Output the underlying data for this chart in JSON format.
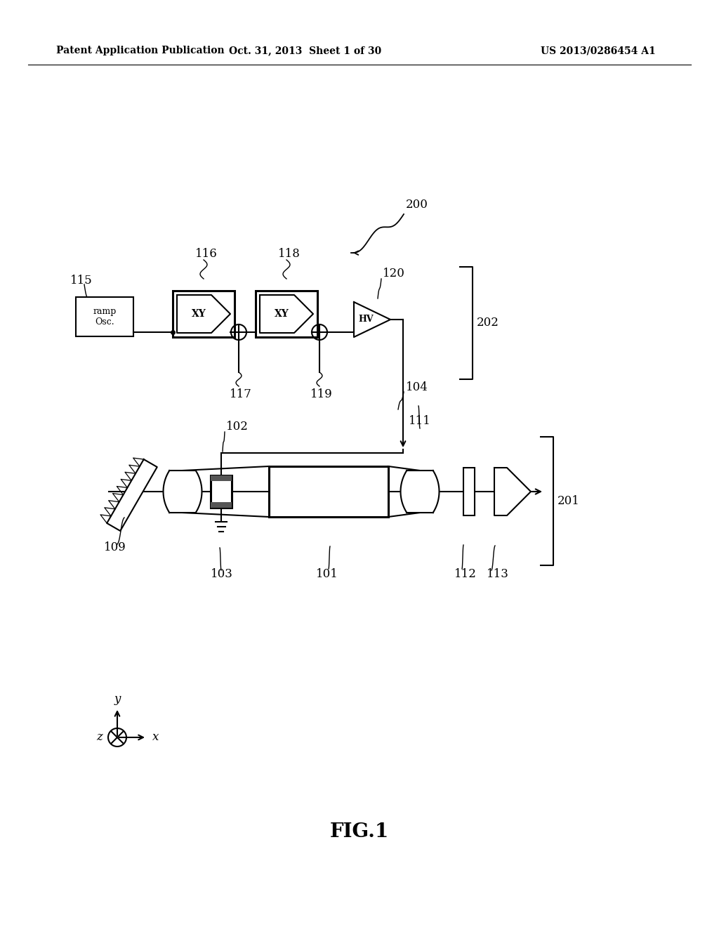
{
  "bg_color": "#ffffff",
  "header_left": "Patent Application Publication",
  "header_mid": "Oct. 31, 2013  Sheet 1 of 30",
  "header_right": "US 2013/0286454 A1",
  "fig_label": "FIG.1",
  "lw": 1.5,
  "lw_thick": 2.2,
  "font": "DejaVu Serif",
  "fs_header": 10,
  "fs_label": 12,
  "fs_body": 10,
  "fs_fig": 20
}
